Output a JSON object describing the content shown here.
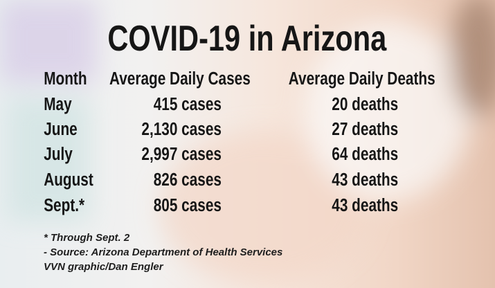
{
  "title": "COVID-19 in Arizona",
  "table": {
    "header": [
      "Month",
      "Average Daily Cases",
      "Average Daily Deaths"
    ],
    "rows": [
      [
        "May",
        "415 cases",
        "20 deaths"
      ],
      [
        "June",
        "2,130 cases",
        "27 deaths"
      ],
      [
        "July",
        "2,997 cases",
        "64 deaths"
      ],
      [
        "August",
        "826 cases",
        "43 deaths"
      ],
      [
        "Sept.*",
        "805 cases",
        "43 deaths"
      ]
    ]
  },
  "notes": [
    "* Through Sept. 2",
    "- Source: Arizona Department of Health Services",
    "VVN graphic/Dan Engler"
  ]
}
